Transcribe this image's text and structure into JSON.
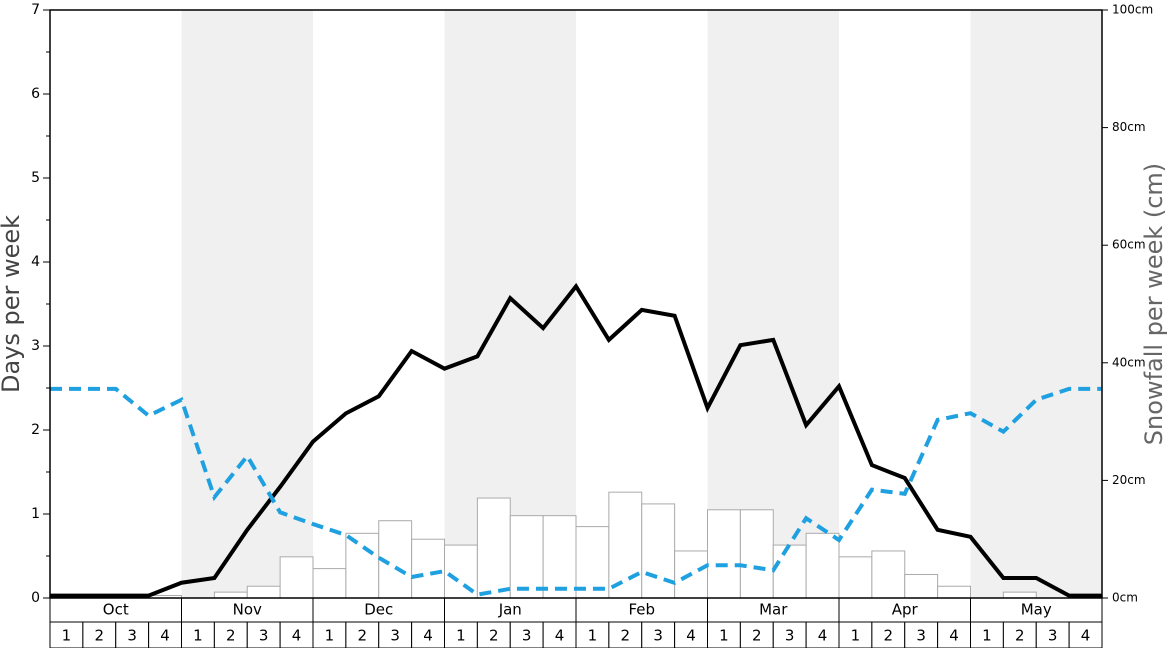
{
  "chart_data": {
    "type": "combo",
    "y_label": "Days per week",
    "y2_label": "Snowfall per week (cm)",
    "groups": [
      "Oct",
      "Nov",
      "Dec",
      "Jan",
      "Feb",
      "Mar",
      "Apr",
      "May"
    ],
    "categories": [
      1,
      2,
      3,
      4,
      1,
      2,
      3,
      4,
      1,
      2,
      3,
      4,
      1,
      2,
      3,
      4,
      1,
      2,
      3,
      4,
      1,
      2,
      3,
      4,
      1,
      2,
      3,
      4,
      1,
      2,
      3,
      4
    ],
    "x": [
      0,
      1,
      2,
      3,
      4,
      5,
      6,
      7,
      8,
      9,
      10,
      11,
      12,
      13,
      14,
      15,
      16,
      17,
      18,
      19,
      20,
      21,
      22,
      23,
      24,
      25,
      26,
      27,
      28,
      29,
      30,
      31,
      32
    ],
    "xlim": [
      0,
      32
    ],
    "ylim": [
      0,
      7
    ],
    "yticks": [
      0,
      1,
      2,
      3,
      4,
      5,
      6,
      7
    ],
    "minor_yticks": [
      0.5,
      1.5,
      2.5,
      3.5,
      4.5,
      5.5,
      6.5
    ],
    "y2lim": [
      0,
      100
    ],
    "y2ticks": [
      {
        "value": 0,
        "label": "0cm"
      },
      {
        "value": 20,
        "label": "20cm"
      },
      {
        "value": 40,
        "label": "40cm"
      },
      {
        "value": 60,
        "label": "60cm"
      },
      {
        "value": 80,
        "label": "80cm"
      },
      {
        "value": 100,
        "label": "100cm"
      }
    ],
    "shade_color": "#f0f0f0",
    "series": [
      {
        "type": "bar",
        "color": "#ffffff",
        "stroke": "#aaaaaa",
        "values": [
          0,
          0,
          0,
          0.03,
          0,
          0.07,
          0.14,
          0.49,
          0.35,
          0.77,
          0.92,
          0.7,
          0.63,
          1.19,
          0.98,
          0.98,
          0.85,
          1.26,
          1.12,
          0.56,
          1.05,
          1.05,
          0.63,
          0.77,
          0.49,
          0.56,
          0.28,
          0.14,
          0,
          0.07,
          0,
          0
        ]
      },
      {
        "type": "line",
        "axis": "y2",
        "color": "#000000",
        "dashed": false,
        "values": [
          0.4,
          0.4,
          0.4,
          0.4,
          2.6,
          3.4,
          11.6,
          18.9,
          26.6,
          31.4,
          34.3,
          42,
          39,
          41.1,
          51,
          45.9,
          53,
          43.9,
          49,
          48,
          32.3,
          43,
          43.9,
          29.4,
          36,
          22.6,
          20.4,
          11.6,
          10.4,
          3.4,
          3.4,
          0.4,
          0.4
        ]
      },
      {
        "type": "line",
        "color": "#1fa0e0",
        "dashed": true,
        "values": [
          2.49,
          2.49,
          2.49,
          2.17,
          2.36,
          1.2,
          1.69,
          1.02,
          0.88,
          0.75,
          0.48,
          0.25,
          0.32,
          0.04,
          0.11,
          0.11,
          0.11,
          0.11,
          0.31,
          0.18,
          0.39,
          0.39,
          0.33,
          0.95,
          0.69,
          1.29,
          1.24,
          2.12,
          2.2,
          1.98,
          2.36,
          2.49,
          2.49
        ]
      }
    ]
  }
}
